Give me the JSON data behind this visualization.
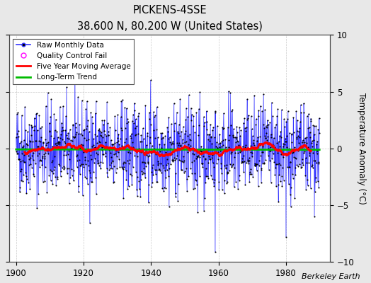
{
  "title": "PICKENS-4SSE",
  "subtitle": "38.600 N, 80.200 W (United States)",
  "right_ylabel": "Temperature Anomaly (°C)",
  "credit": "Berkeley Earth",
  "xlim": [
    1898,
    1993
  ],
  "ylim": [
    -10,
    10
  ],
  "yticks": [
    -10,
    -5,
    0,
    5,
    10
  ],
  "xticks": [
    1900,
    1920,
    1940,
    1960,
    1980
  ],
  "raw_color": "#3333ff",
  "ma_color": "#ff0000",
  "trend_color": "#00bb00",
  "qc_color": "#ff00ff",
  "background_color": "#e8e8e8",
  "plot_bg_color": "#ffffff",
  "seed": 42,
  "n_months": 1080,
  "start_year": 1900,
  "noise_std": 2.0,
  "trend_slope": -0.0003
}
